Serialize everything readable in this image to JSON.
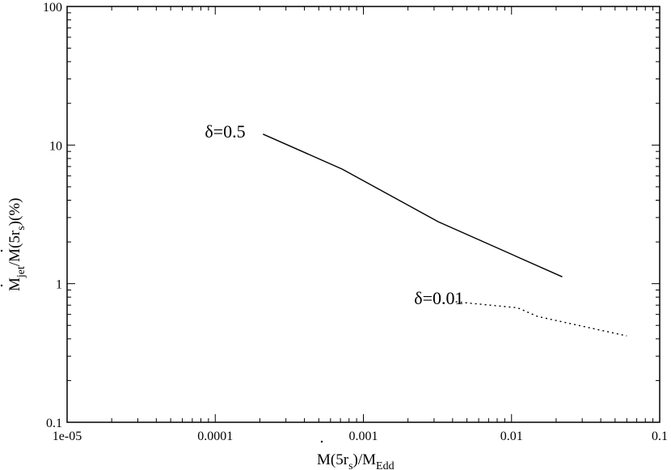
{
  "chart_data": {
    "type": "line",
    "xscale": "log",
    "yscale": "log",
    "xlim": [
      1e-05,
      0.1
    ],
    "ylim": [
      0.1,
      100
    ],
    "x_ticks": [
      {
        "value": 1e-05,
        "label": "1e-05"
      },
      {
        "value": 0.0001,
        "label": "0.0001"
      },
      {
        "value": 0.001,
        "label": "0.001"
      },
      {
        "value": 0.01,
        "label": "0.01"
      },
      {
        "value": 0.1,
        "label": "0.1"
      }
    ],
    "y_ticks": [
      {
        "value": 0.1,
        "label": "0.1"
      },
      {
        "value": 1,
        "label": "1"
      },
      {
        "value": 10,
        "label": "10"
      },
      {
        "value": 100,
        "label": "100"
      }
    ],
    "xlabel": {
      "main1": "M(5r",
      "sub1": "s",
      "main2": ")/M",
      "sub2": "Edd"
    },
    "ylabel": {
      "main1": "M",
      "sub1": "jet",
      "main2": "/M(5r",
      "sub2": "s",
      "main3": ")(%)"
    },
    "grid": false,
    "series": [
      {
        "label": "δ=0.5",
        "style": "solid",
        "color": "#000000",
        "points": [
          [
            0.00021,
            12.0
          ],
          [
            0.00072,
            6.7
          ],
          [
            0.0032,
            2.8
          ],
          [
            0.022,
            1.12
          ]
        ]
      },
      {
        "label": "δ=0.01",
        "style": "dotted",
        "color": "#000000",
        "points": [
          [
            0.0042,
            0.74
          ],
          [
            0.011,
            0.67
          ],
          [
            0.015,
            0.58
          ],
          [
            0.06,
            0.42
          ]
        ]
      }
    ],
    "annotations": [
      {
        "text": "δ=0.5",
        "x": 8.5e-05,
        "y": 11.3
      },
      {
        "text": "δ=0.01",
        "x": 0.0022,
        "y": 0.71
      }
    ]
  }
}
